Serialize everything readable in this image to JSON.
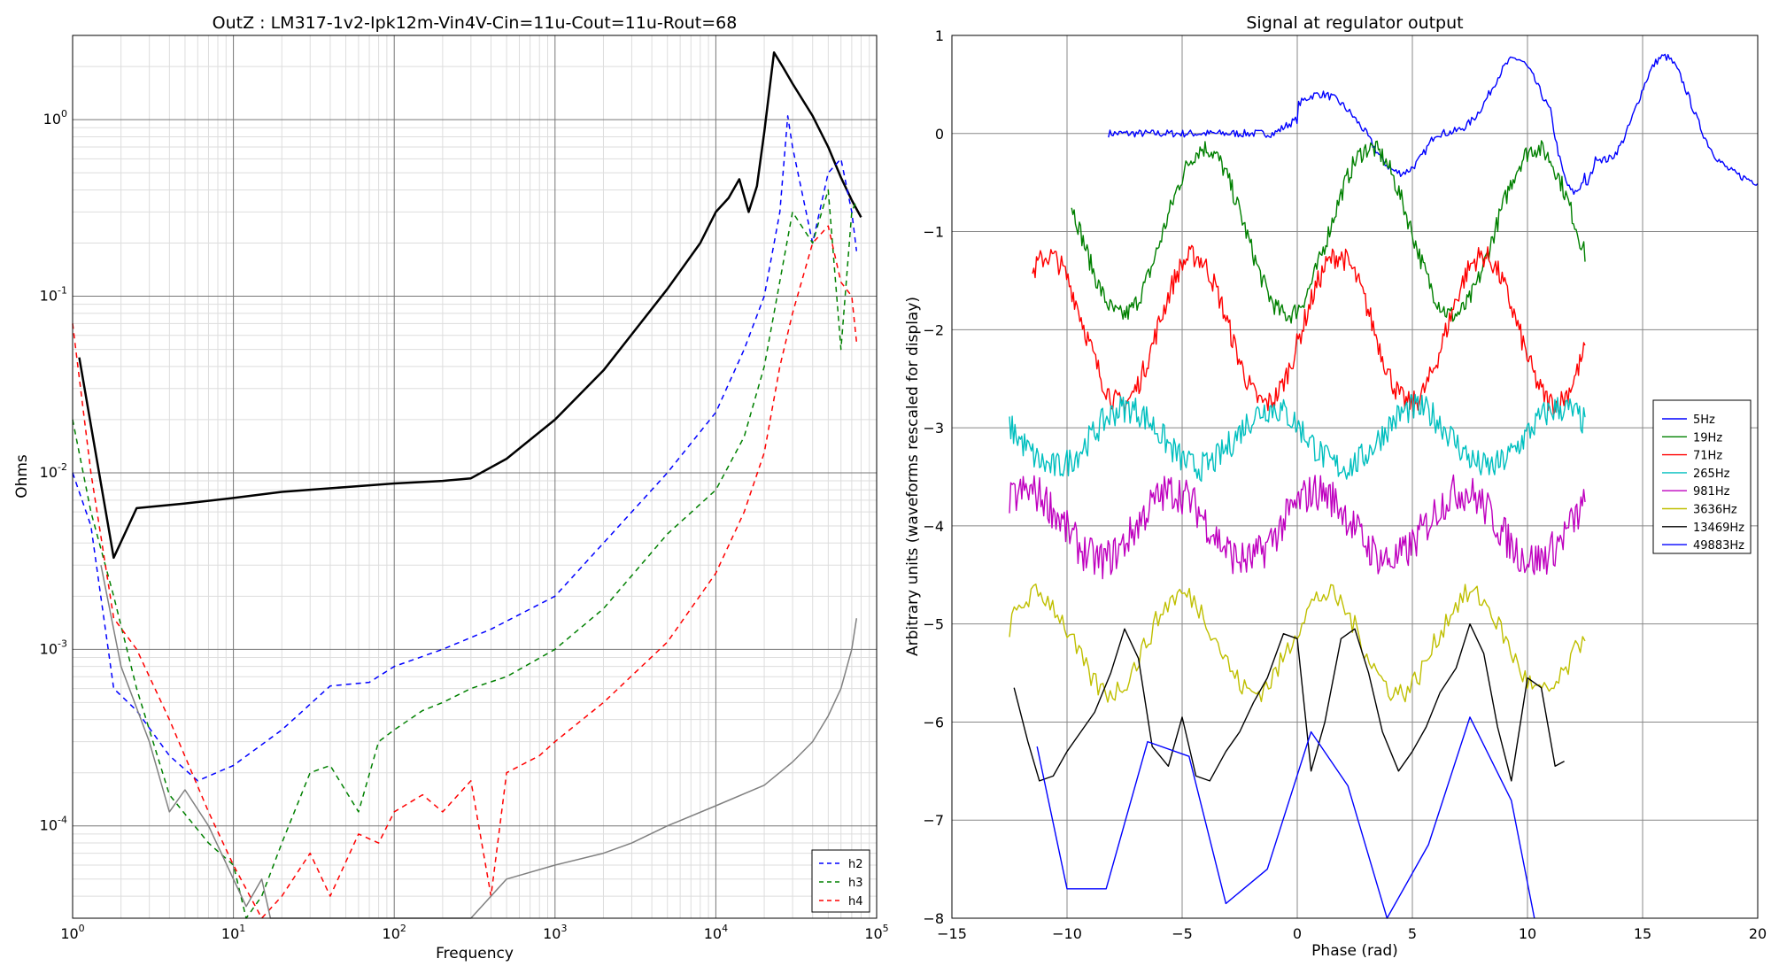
{
  "colors": {
    "blue": "#0000ff",
    "green": "#008000",
    "red": "#ff0000",
    "cyan": "#00bfbf",
    "magenta": "#bf00bf",
    "olive": "#bfbf00",
    "black": "#000000",
    "gray": "#808080"
  },
  "chart_data": [
    {
      "type": "line",
      "title": "OutZ : LM317-1v2-Ipk12m-Vin4V-Cin=11u-Cout=11u-Rout=68",
      "xlabel": "Frequency",
      "ylabel": "Ohms",
      "xscale": "log",
      "yscale": "log",
      "xlim": [
        1,
        100000
      ],
      "ylim": [
        3e-05,
        3
      ],
      "x_ticks": [
        {
          "base": "10",
          "exp": "0"
        },
        {
          "base": "10",
          "exp": "1"
        },
        {
          "base": "10",
          "exp": "2"
        },
        {
          "base": "10",
          "exp": "3"
        },
        {
          "base": "10",
          "exp": "4"
        },
        {
          "base": "10",
          "exp": "5"
        }
      ],
      "y_ticks": [
        {
          "base": "10",
          "exp": "-4"
        },
        {
          "base": "10",
          "exp": "-3"
        },
        {
          "base": "10",
          "exp": "-2"
        },
        {
          "base": "10",
          "exp": "-1"
        },
        {
          "base": "10",
          "exp": "0"
        }
      ],
      "grid": true,
      "legend_position": "bottom-right",
      "legend": [
        {
          "label": "h2",
          "color": "#0000ff"
        },
        {
          "label": "h3",
          "color": "#008000"
        },
        {
          "label": "h4",
          "color": "#ff0000"
        }
      ],
      "series": [
        {
          "name": "",
          "color": "#000000",
          "style": "solid",
          "width": 2.5,
          "x": [
            1.1,
            1.8,
            2.5,
            5,
            10,
            20,
            50,
            100,
            200,
            300,
            500,
            1000,
            2000,
            5000,
            8000,
            10000,
            12000,
            14000,
            16000,
            18000,
            20000,
            23000,
            26000,
            30000,
            40000,
            50000,
            60000,
            70000,
            80000
          ],
          "y": [
            0.045,
            0.0033,
            0.0063,
            0.0067,
            0.0072,
            0.0078,
            0.0083,
            0.0087,
            0.009,
            0.0093,
            0.012,
            0.02,
            0.038,
            0.11,
            0.2,
            0.3,
            0.36,
            0.46,
            0.3,
            0.42,
            0.85,
            2.4,
            2.0,
            1.6,
            1.05,
            0.7,
            0.47,
            0.35,
            0.28
          ]
        },
        {
          "name": "h2",
          "color": "#0000ff",
          "style": "dashed",
          "width": 1.5,
          "x": [
            1,
            1.3,
            1.8,
            2.5,
            4,
            6,
            10,
            20,
            40,
            70,
            100,
            200,
            400,
            1000,
            2000,
            5000,
            10000,
            15000,
            20000,
            25000,
            28000,
            30000,
            40000,
            50000,
            60000,
            70000,
            75000
          ],
          "y": [
            0.01,
            0.005,
            0.0006,
            0.00045,
            0.00025,
            0.00018,
            0.00022,
            0.00035,
            0.00062,
            0.00065,
            0.0008,
            0.001,
            0.0013,
            0.002,
            0.004,
            0.01,
            0.022,
            0.05,
            0.1,
            0.3,
            1.05,
            0.7,
            0.2,
            0.5,
            0.6,
            0.3,
            0.18
          ]
        },
        {
          "name": "h3",
          "color": "#008000",
          "style": "dashed",
          "width": 1.5,
          "x": [
            1,
            1.3,
            1.8,
            2.5,
            4,
            7,
            10,
            12,
            15,
            20,
            30,
            40,
            60,
            80,
            100,
            150,
            200,
            300,
            500,
            1000,
            2000,
            5000,
            10000,
            15000,
            20000,
            30000,
            40000,
            50000,
            60000,
            70000,
            75000
          ],
          "y": [
            0.02,
            0.006,
            0.002,
            0.0006,
            0.00015,
            8e-05,
            6e-05,
            3e-05,
            4e-05,
            8e-05,
            0.0002,
            0.00022,
            0.00012,
            0.0003,
            0.00035,
            0.00045,
            0.0005,
            0.0006,
            0.0007,
            0.001,
            0.0017,
            0.0045,
            0.008,
            0.016,
            0.04,
            0.3,
            0.2,
            0.4,
            0.05,
            0.3,
            0.35
          ]
        },
        {
          "name": "h4",
          "color": "#ff0000",
          "style": "dashed",
          "width": 1.5,
          "x": [
            1,
            1.3,
            1.8,
            2.5,
            4,
            7,
            10,
            15,
            20,
            30,
            40,
            60,
            80,
            100,
            150,
            200,
            300,
            400,
            500,
            800,
            1000,
            2000,
            5000,
            10000,
            15000,
            20000,
            25000,
            30000,
            40000,
            50000,
            60000,
            70000,
            75000
          ],
          "y": [
            0.07,
            0.01,
            0.0015,
            0.001,
            0.0004,
            0.00012,
            6e-05,
            3e-05,
            4e-05,
            7e-05,
            4e-05,
            9e-05,
            8e-05,
            0.00012,
            0.00015,
            0.00012,
            0.00018,
            4e-05,
            0.0002,
            0.00025,
            0.0003,
            0.0005,
            0.0011,
            0.0027,
            0.006,
            0.013,
            0.04,
            0.08,
            0.2,
            0.25,
            0.12,
            0.1,
            0.055
          ]
        },
        {
          "name": "",
          "color": "#808080",
          "style": "solid",
          "width": 1.5,
          "x": [
            1.5,
            2,
            3,
            4,
            5,
            7,
            10,
            12,
            15,
            17,
            300,
            500,
            1000,
            2000,
            3000,
            5000,
            10000,
            20000,
            30000,
            40000,
            50000,
            60000,
            70000,
            75000
          ],
          "y": [
            0.003,
            0.0008,
            0.0003,
            0.00012,
            0.00016,
            0.0001,
            5e-05,
            3.5e-05,
            5e-05,
            3e-05,
            3e-05,
            5e-05,
            6e-05,
            7e-05,
            8e-05,
            0.0001,
            0.00013,
            0.00017,
            0.00023,
            0.0003,
            0.00042,
            0.0006,
            0.001,
            0.0015
          ]
        }
      ]
    },
    {
      "type": "line",
      "title": "Signal at regulator output",
      "xlabel": "Phase (rad)",
      "ylabel": "Arbitrary units (waveforms rescaled for display)",
      "xlim": [
        -15,
        20
      ],
      "ylim": [
        -8,
        1
      ],
      "x_ticks": [
        "−15",
        "−10",
        "−5",
        "0",
        "5",
        "10",
        "15",
        "20"
      ],
      "y_ticks": [
        "−8",
        "−7",
        "−6",
        "−5",
        "−4",
        "−3",
        "−2",
        "−1",
        "0",
        "1"
      ],
      "grid": true,
      "legend_position": "center-right",
      "series": [
        {
          "name": "5Hz",
          "color": "#0000ff",
          "center": 0,
          "amp": 0.1,
          "x0": -8.2,
          "x1": 20,
          "n": 420,
          "shape": "five",
          "noise": 0.04
        },
        {
          "name": "19Hz",
          "color": "#008000",
          "center": -1.0,
          "amp": 0.85,
          "period": 7.2,
          "phase": -1.2,
          "x0": -9.8,
          "x1": 12.5,
          "n": 400,
          "noise": 0.1
        },
        {
          "name": "71Hz",
          "color": "#ff0000",
          "center": -2.0,
          "amp": 0.75,
          "period": 6.28,
          "phase": -0.2,
          "x0": -11.5,
          "x1": 12.5,
          "n": 420,
          "noise": 0.12
        },
        {
          "name": "265Hz",
          "color": "#00bfbf",
          "center": -3.1,
          "amp": 0.3,
          "period": 6.28,
          "phase": 2.7,
          "x0": -12.5,
          "x1": 12.5,
          "n": 420,
          "noise": 0.15
        },
        {
          "name": "981Hz",
          "color": "#bf00bf",
          "center": -4.0,
          "amp": 0.35,
          "period": 6.28,
          "phase": 0.7,
          "x0": -12.5,
          "x1": 12.5,
          "n": 420,
          "noise": 0.2
        },
        {
          "name": "3636Hz",
          "color": "#bfbf00",
          "center": -5.2,
          "amp": 0.5,
          "period": 6.28,
          "phase": 0.3,
          "x0": -12.5,
          "x1": 12.5,
          "n": 240,
          "noise": 0.12
        },
        {
          "name": "13469Hz",
          "color": "#000000",
          "center": 0,
          "amp": 0,
          "x0": -12.3,
          "x1": 11.6,
          "x": [
            -12.3,
            -11.7,
            -11.2,
            -10.6,
            -10,
            -9.4,
            -8.8,
            -8.1,
            -7.5,
            -6.9,
            -6.3,
            -5.6,
            -5,
            -4.4,
            -3.8,
            -3.1,
            -2.5,
            -1.9,
            -1.3,
            -0.6,
            0,
            0.6,
            1.2,
            1.9,
            2.5,
            3.1,
            3.7,
            4.4,
            5,
            5.6,
            6.2,
            6.9,
            7.5,
            8.1,
            8.7,
            9.3,
            10,
            10.6,
            11.2,
            11.6
          ],
          "y": [
            -5.65,
            -6.2,
            -6.6,
            -6.55,
            -6.3,
            -6.1,
            -5.9,
            -5.5,
            -5.05,
            -5.35,
            -6.25,
            -6.45,
            -5.95,
            -6.55,
            -6.6,
            -6.3,
            -6.1,
            -5.8,
            -5.55,
            -5.1,
            -5.15,
            -6.5,
            -6.0,
            -5.15,
            -5.05,
            -5.5,
            -6.1,
            -6.5,
            -6.3,
            -6.05,
            -5.7,
            -5.45,
            -5.0,
            -5.3,
            -6.05,
            -6.6,
            -5.55,
            -5.65,
            -6.45,
            -6.4
          ]
        },
        {
          "name": "49883Hz",
          "color": "#0000ff",
          "center": 0,
          "amp": 0,
          "x": [
            -11.3,
            -10,
            -8.3,
            -6.5,
            -4.7,
            -3.1,
            -1.3,
            0.6,
            2.2,
            3.9,
            5.7,
            7.5,
            9.3,
            10.3
          ],
          "y": [
            -6.25,
            -7.7,
            -7.7,
            -6.2,
            -6.35,
            -7.85,
            -7.5,
            -6.1,
            -6.65,
            -8.0,
            -7.25,
            -5.95,
            -6.8,
            -8.0
          ]
        }
      ]
    }
  ]
}
